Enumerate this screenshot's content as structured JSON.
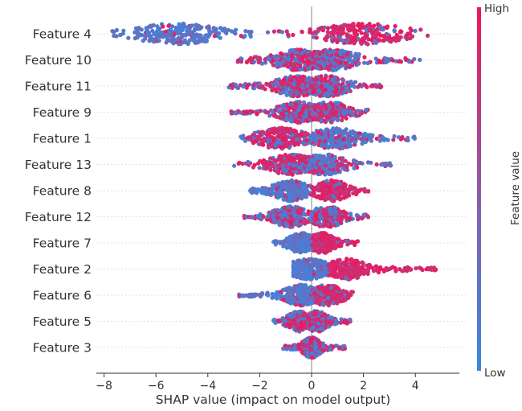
{
  "chart_data": {
    "type": "scatter",
    "subtype": "shap-beeswarm",
    "title": "",
    "xlabel": "SHAP value (impact on model output)",
    "ylabel": "",
    "xlim": [
      -8.3,
      5.7
    ],
    "x_ticks": [
      -8,
      -6,
      -4,
      -2,
      0,
      2,
      4
    ],
    "x_tick_labels": [
      "−8",
      "−6",
      "−4",
      "−2",
      "0",
      "2",
      "4"
    ],
    "features": [
      {
        "name": "Feature 4",
        "min": -7.7,
        "max": 4.5,
        "peak_low": -5.2,
        "peak_high": 2.0,
        "high_share_right": 0.9
      },
      {
        "name": "Feature 10",
        "min": -2.9,
        "max": 4.2,
        "peak_low": -0.5,
        "peak_high": 0.8,
        "high_share_right": 0.4
      },
      {
        "name": "Feature 11",
        "min": -3.2,
        "max": 2.7,
        "peak_low": -0.6,
        "peak_high": 0.6,
        "high_share_right": 0.5
      },
      {
        "name": "Feature 9",
        "min": -3.1,
        "max": 2.3,
        "peak_low": -0.5,
        "peak_high": 0.7,
        "high_share_right": 0.5
      },
      {
        "name": "Feature 1",
        "min": -2.8,
        "max": 4.0,
        "peak_low": -1.2,
        "peak_high": 0.9,
        "high_share_right": 0.2
      },
      {
        "name": "Feature 13",
        "min": -3.0,
        "max": 3.1,
        "peak_low": -0.8,
        "peak_high": 0.5,
        "high_share_right": 0.3
      },
      {
        "name": "Feature 8",
        "min": -2.4,
        "max": 2.2,
        "peak_low": -0.8,
        "peak_high": 0.8,
        "high_share_right": 0.9
      },
      {
        "name": "Feature 12",
        "min": -2.6,
        "max": 2.2,
        "peak_low": -0.8,
        "peak_high": 0.6,
        "high_share_right": 0.5
      },
      {
        "name": "Feature 7",
        "min": -1.5,
        "max": 1.8,
        "peak_low": -0.4,
        "peak_high": 0.4,
        "high_share_right": 0.95
      },
      {
        "name": "Feature 2",
        "min": -0.7,
        "max": 4.8,
        "peak_low": -0.1,
        "peak_high": 1.4,
        "high_share_right": 0.95
      },
      {
        "name": "Feature 6",
        "min": -2.8,
        "max": 1.7,
        "peak_low": -0.4,
        "peak_high": 0.6,
        "high_share_right": 0.9
      },
      {
        "name": "Feature 5",
        "min": -1.5,
        "max": 1.5,
        "peak_low": -0.5,
        "peak_high": 0.2,
        "high_share_right": 0.5
      },
      {
        "name": "Feature 3",
        "min": -1.1,
        "max": 1.3,
        "peak_low": 0.0,
        "peak_high": 0.0,
        "high_share_right": 0.5
      }
    ],
    "colorbar": {
      "title": "Feature value",
      "high_label": "High",
      "low_label": "Low",
      "high_color": "#ff0d57",
      "low_color": "#1e88e5"
    }
  }
}
